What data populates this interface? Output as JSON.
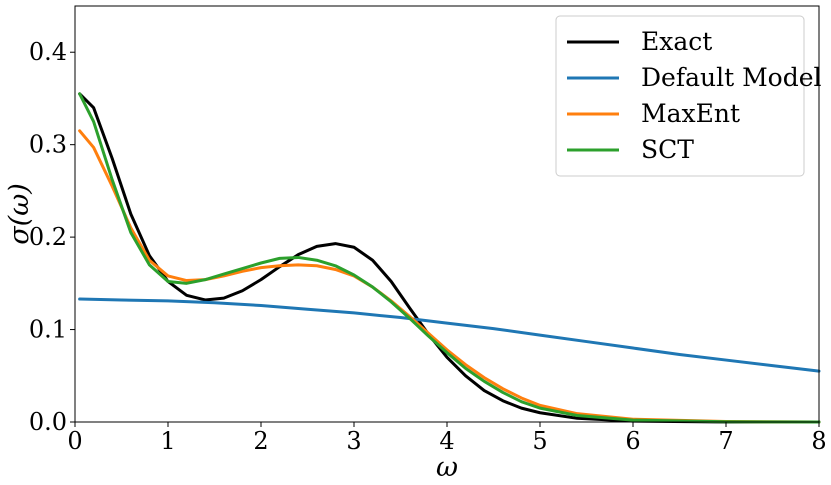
{
  "chart_data": {
    "type": "line",
    "title": "",
    "xlabel": "ω",
    "ylabel": "σ(ω)",
    "xlim": [
      0,
      8
    ],
    "ylim": [
      0,
      0.45
    ],
    "x_ticks": [
      "0",
      "1",
      "2",
      "3",
      "4",
      "5",
      "6",
      "7",
      "8"
    ],
    "y_ticks": [
      "0.0",
      "0.1",
      "0.2",
      "0.3",
      "0.4"
    ],
    "grid": false,
    "legend_position": "top-right",
    "series": [
      {
        "name": "Exact",
        "color": "#000000",
        "points": [
          [
            0.05,
            0.355
          ],
          [
            0.2,
            0.34
          ],
          [
            0.4,
            0.285
          ],
          [
            0.6,
            0.225
          ],
          [
            0.8,
            0.18
          ],
          [
            1.0,
            0.152
          ],
          [
            1.2,
            0.137
          ],
          [
            1.4,
            0.132
          ],
          [
            1.6,
            0.134
          ],
          [
            1.8,
            0.142
          ],
          [
            2.0,
            0.154
          ],
          [
            2.2,
            0.168
          ],
          [
            2.4,
            0.181
          ],
          [
            2.6,
            0.19
          ],
          [
            2.8,
            0.193
          ],
          [
            3.0,
            0.189
          ],
          [
            3.2,
            0.175
          ],
          [
            3.4,
            0.152
          ],
          [
            3.6,
            0.123
          ],
          [
            3.8,
            0.095
          ],
          [
            4.0,
            0.07
          ],
          [
            4.2,
            0.05
          ],
          [
            4.4,
            0.034
          ],
          [
            4.6,
            0.023
          ],
          [
            4.8,
            0.015
          ],
          [
            5.0,
            0.01
          ],
          [
            5.4,
            0.004
          ],
          [
            6.0,
            0.001
          ],
          [
            7.0,
            0.0
          ],
          [
            8.0,
            0.0
          ]
        ]
      },
      {
        "name": "Default Model",
        "color": "#1f77b4",
        "points": [
          [
            0.05,
            0.133
          ],
          [
            0.5,
            0.132
          ],
          [
            1.0,
            0.131
          ],
          [
            1.5,
            0.129
          ],
          [
            2.0,
            0.126
          ],
          [
            2.5,
            0.122
          ],
          [
            3.0,
            0.118
          ],
          [
            3.5,
            0.113
          ],
          [
            4.0,
            0.107
          ],
          [
            4.5,
            0.101
          ],
          [
            5.0,
            0.094
          ],
          [
            5.5,
            0.087
          ],
          [
            6.0,
            0.08
          ],
          [
            6.5,
            0.073
          ],
          [
            7.0,
            0.067
          ],
          [
            7.5,
            0.061
          ],
          [
            8.0,
            0.055
          ]
        ]
      },
      {
        "name": "MaxEnt",
        "color": "#ff7f0e",
        "points": [
          [
            0.05,
            0.315
          ],
          [
            0.2,
            0.297
          ],
          [
            0.4,
            0.255
          ],
          [
            0.6,
            0.21
          ],
          [
            0.8,
            0.175
          ],
          [
            1.0,
            0.158
          ],
          [
            1.2,
            0.153
          ],
          [
            1.4,
            0.154
          ],
          [
            1.6,
            0.158
          ],
          [
            1.8,
            0.163
          ],
          [
            2.0,
            0.167
          ],
          [
            2.2,
            0.169
          ],
          [
            2.4,
            0.17
          ],
          [
            2.6,
            0.169
          ],
          [
            2.8,
            0.165
          ],
          [
            3.0,
            0.158
          ],
          [
            3.2,
            0.146
          ],
          [
            3.4,
            0.131
          ],
          [
            3.6,
            0.114
          ],
          [
            3.8,
            0.096
          ],
          [
            4.0,
            0.078
          ],
          [
            4.2,
            0.062
          ],
          [
            4.4,
            0.048
          ],
          [
            4.6,
            0.036
          ],
          [
            4.8,
            0.026
          ],
          [
            5.0,
            0.018
          ],
          [
            5.4,
            0.009
          ],
          [
            6.0,
            0.003
          ],
          [
            7.0,
            0.0005
          ],
          [
            8.0,
            0.0
          ]
        ]
      },
      {
        "name": "SCT",
        "color": "#2ca02c",
        "points": [
          [
            0.05,
            0.355
          ],
          [
            0.2,
            0.325
          ],
          [
            0.4,
            0.262
          ],
          [
            0.6,
            0.205
          ],
          [
            0.8,
            0.17
          ],
          [
            1.0,
            0.152
          ],
          [
            1.2,
            0.15
          ],
          [
            1.4,
            0.154
          ],
          [
            1.6,
            0.16
          ],
          [
            1.8,
            0.166
          ],
          [
            2.0,
            0.172
          ],
          [
            2.2,
            0.177
          ],
          [
            2.4,
            0.178
          ],
          [
            2.6,
            0.175
          ],
          [
            2.8,
            0.169
          ],
          [
            3.0,
            0.159
          ],
          [
            3.2,
            0.146
          ],
          [
            3.4,
            0.13
          ],
          [
            3.6,
            0.112
          ],
          [
            3.8,
            0.093
          ],
          [
            4.0,
            0.075
          ],
          [
            4.2,
            0.058
          ],
          [
            4.4,
            0.044
          ],
          [
            4.6,
            0.032
          ],
          [
            4.8,
            0.022
          ],
          [
            5.0,
            0.015
          ],
          [
            5.4,
            0.007
          ],
          [
            6.0,
            0.002
          ],
          [
            7.0,
            0.0003
          ],
          [
            8.0,
            0.0
          ]
        ]
      }
    ]
  }
}
